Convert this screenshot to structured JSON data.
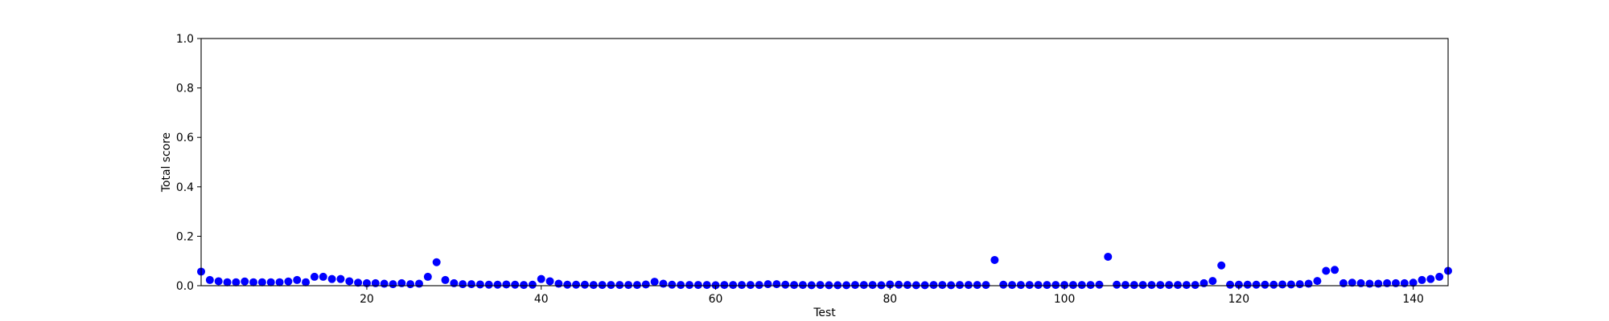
{
  "chart_data": {
    "type": "scatter",
    "xlabel": "Test",
    "ylabel": "Total score",
    "xlim": [
      1,
      144
    ],
    "ylim": [
      0,
      1.0
    ],
    "xticks": [
      20,
      40,
      60,
      80,
      100,
      120,
      140
    ],
    "yticks": [
      0.0,
      0.2,
      0.4,
      0.6,
      0.8,
      1.0
    ],
    "xtick_labels": [
      "20",
      "40",
      "60",
      "80",
      "100",
      "120",
      "140"
    ],
    "ytick_labels": [
      "0.0",
      "0.2",
      "0.4",
      "0.6",
      "0.8",
      "1.0"
    ],
    "grid": false,
    "marker_color": "#0000ff",
    "series": [
      {
        "x": [
          1,
          2,
          3,
          4,
          5,
          6,
          7,
          8,
          9,
          10,
          11,
          12,
          13,
          14,
          15,
          16,
          17,
          18,
          19,
          20,
          21,
          22,
          23,
          24,
          25,
          26,
          27,
          28,
          29,
          30,
          31,
          32,
          33,
          34,
          35,
          36,
          37,
          38,
          39,
          40,
          41,
          42,
          43,
          44,
          45,
          46,
          47,
          48,
          49,
          50,
          51,
          52,
          53,
          54,
          55,
          56,
          57,
          58,
          59,
          60,
          61,
          62,
          63,
          64,
          65,
          66,
          67,
          68,
          69,
          70,
          71,
          72,
          73,
          74,
          75,
          76,
          77,
          78,
          79,
          80,
          81,
          82,
          83,
          84,
          85,
          86,
          87,
          88,
          89,
          90,
          91,
          92,
          93,
          94,
          95,
          96,
          97,
          98,
          99,
          100,
          101,
          102,
          103,
          104,
          105,
          106,
          107,
          108,
          109,
          110,
          111,
          112,
          113,
          114,
          115,
          116,
          117,
          118,
          119,
          120,
          121,
          122,
          123,
          124,
          125,
          126,
          127,
          128,
          129,
          130,
          131,
          132,
          133,
          134,
          135,
          136,
          137,
          138,
          139,
          140,
          141,
          142,
          143,
          144
        ],
        "y": [
          0.057,
          0.023,
          0.018,
          0.014,
          0.014,
          0.017,
          0.014,
          0.014,
          0.014,
          0.014,
          0.017,
          0.023,
          0.014,
          0.036,
          0.036,
          0.027,
          0.027,
          0.018,
          0.012,
          0.01,
          0.01,
          0.008,
          0.006,
          0.01,
          0.006,
          0.008,
          0.036,
          0.095,
          0.023,
          0.01,
          0.006,
          0.006,
          0.005,
          0.004,
          0.004,
          0.005,
          0.004,
          0.003,
          0.004,
          0.027,
          0.018,
          0.008,
          0.004,
          0.004,
          0.004,
          0.003,
          0.003,
          0.003,
          0.003,
          0.003,
          0.003,
          0.005,
          0.016,
          0.008,
          0.004,
          0.003,
          0.003,
          0.003,
          0.003,
          0.002,
          0.003,
          0.003,
          0.003,
          0.003,
          0.003,
          0.006,
          0.006,
          0.004,
          0.003,
          0.003,
          0.002,
          0.003,
          0.002,
          0.002,
          0.002,
          0.003,
          0.003,
          0.003,
          0.002,
          0.005,
          0.004,
          0.003,
          0.002,
          0.002,
          0.003,
          0.003,
          0.002,
          0.003,
          0.003,
          0.003,
          0.003,
          0.104,
          0.004,
          0.003,
          0.003,
          0.003,
          0.003,
          0.003,
          0.003,
          0.003,
          0.003,
          0.003,
          0.003,
          0.004,
          0.117,
          0.004,
          0.003,
          0.003,
          0.003,
          0.003,
          0.003,
          0.003,
          0.003,
          0.003,
          0.003,
          0.01,
          0.019,
          0.082,
          0.004,
          0.004,
          0.004,
          0.004,
          0.004,
          0.004,
          0.005,
          0.005,
          0.006,
          0.008,
          0.019,
          0.06,
          0.064,
          0.01,
          0.012,
          0.01,
          0.008,
          0.008,
          0.01,
          0.01,
          0.01,
          0.012,
          0.023,
          0.027,
          0.036,
          0.06
        ]
      }
    ]
  }
}
